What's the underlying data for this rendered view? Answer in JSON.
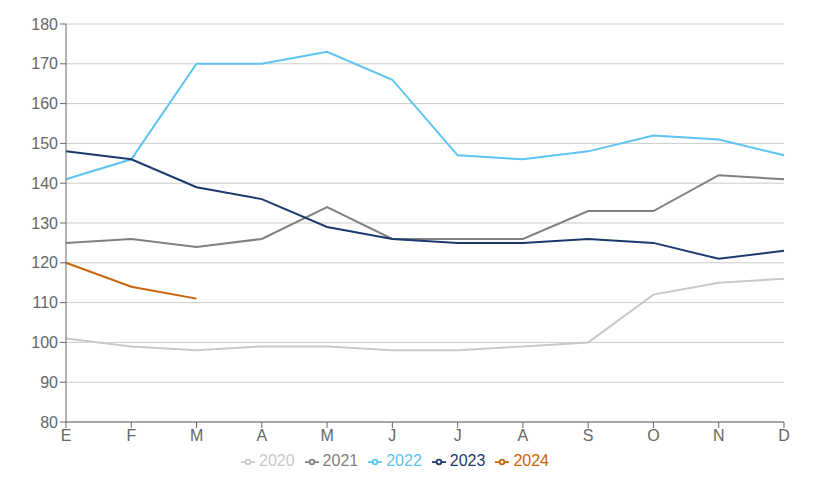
{
  "chart_data": {
    "type": "line",
    "categories": [
      "E",
      "F",
      "M",
      "A",
      "M",
      "J",
      "J",
      "A",
      "S",
      "O",
      "N",
      "D"
    ],
    "series": [
      {
        "name": "2020",
        "color": "#c8c8c8",
        "values": [
          101,
          99,
          98,
          99,
          99,
          98,
          98,
          99,
          100,
          112,
          115,
          116
        ]
      },
      {
        "name": "2021",
        "color": "#808080",
        "values": [
          125,
          126,
          124,
          126,
          134,
          126,
          126,
          126,
          133,
          133,
          142,
          141
        ]
      },
      {
        "name": "2022",
        "color": "#5bc4f0",
        "values": [
          141,
          146,
          170,
          170,
          173,
          166,
          147,
          146,
          148,
          152,
          151,
          147
        ]
      },
      {
        "name": "2023",
        "color": "#1a3a6e",
        "values": [
          148,
          146,
          139,
          136,
          129,
          126,
          125,
          125,
          126,
          125,
          121,
          123
        ]
      },
      {
        "name": "2024",
        "color": "#c8640a",
        "values": [
          120,
          114,
          111,
          null,
          null,
          null,
          null,
          null,
          null,
          null,
          null,
          null
        ]
      }
    ],
    "ylim": [
      80,
      180
    ],
    "yticks": [
      80,
      90,
      100,
      110,
      120,
      130,
      140,
      150,
      160,
      170,
      180
    ],
    "grid": true,
    "legend": "bottom"
  }
}
